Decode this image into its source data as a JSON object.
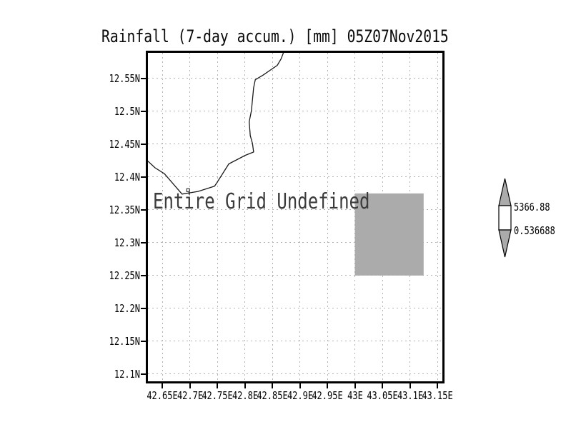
{
  "title": "Rainfall (7-day accum.) [mm] 05Z07Nov2015",
  "colors": {
    "undefined_fill": "#ababab",
    "gridline": "#b2b2b2",
    "coastline": "#1a1a1a",
    "frame": "#000000"
  },
  "chart_data": {
    "type": "heatmap",
    "title": "Rainfall (7-day accum.) [mm] 05Z07Nov2015",
    "subtitle": "",
    "annotation": "Entire Grid Undefined",
    "grid": "dotted",
    "legend_position": "right",
    "x_axis": {
      "range": [
        42.624,
        43.159
      ],
      "ticks": [
        {
          "value": 42.65,
          "label": "42.65E"
        },
        {
          "value": 42.7,
          "label": "42.7E"
        },
        {
          "value": 42.75,
          "label": "42.75E"
        },
        {
          "value": 42.8,
          "label": "42.8E"
        },
        {
          "value": 42.85,
          "label": "42.85E"
        },
        {
          "value": 42.9,
          "label": "42.9E"
        },
        {
          "value": 42.95,
          "label": "42.95E"
        },
        {
          "value": 43.0,
          "label": "43E"
        },
        {
          "value": 43.05,
          "label": "43.05E"
        },
        {
          "value": 43.1,
          "label": "43.1E"
        },
        {
          "value": 43.15,
          "label": "43.15E"
        }
      ]
    },
    "y_axis": {
      "range": [
        12.089,
        12.589
      ],
      "ticks": [
        {
          "value": 12.55,
          "label": "12.55N"
        },
        {
          "value": 12.5,
          "label": "12.5N"
        },
        {
          "value": 12.45,
          "label": "12.45N"
        },
        {
          "value": 12.4,
          "label": "12.4N"
        },
        {
          "value": 12.35,
          "label": "12.35N"
        },
        {
          "value": 12.3,
          "label": "12.3N"
        },
        {
          "value": 12.25,
          "label": "12.25N"
        },
        {
          "value": 12.2,
          "label": "12.2N"
        },
        {
          "value": 12.15,
          "label": "12.15N"
        },
        {
          "value": 12.1,
          "label": "12.1N"
        }
      ]
    },
    "undefined_cell": {
      "lon": [
        43.0,
        43.125
      ],
      "lat": [
        12.25,
        12.375
      ]
    },
    "coastline_lonlat": [
      [
        42.871,
        12.591
      ],
      [
        42.866,
        12.58
      ],
      [
        42.859,
        12.57
      ],
      [
        42.833,
        12.555
      ],
      [
        42.819,
        12.548
      ],
      [
        42.816,
        12.536
      ],
      [
        42.812,
        12.501
      ],
      [
        42.808,
        12.484
      ],
      [
        42.81,
        12.463
      ],
      [
        42.814,
        12.451
      ],
      [
        42.816,
        12.438
      ],
      [
        42.801,
        12.433
      ],
      [
        42.771,
        12.42
      ],
      [
        42.749,
        12.391
      ],
      [
        42.745,
        12.386
      ],
      [
        42.715,
        12.378
      ],
      [
        42.686,
        12.374
      ],
      [
        42.654,
        12.405
      ],
      [
        42.637,
        12.414
      ],
      [
        42.619,
        12.428
      ]
    ],
    "island_marker_lonlat": [
      42.697,
      12.38
    ],
    "colorbar": {
      "max_label": "5366.88",
      "min_label": "0.536688"
    }
  }
}
